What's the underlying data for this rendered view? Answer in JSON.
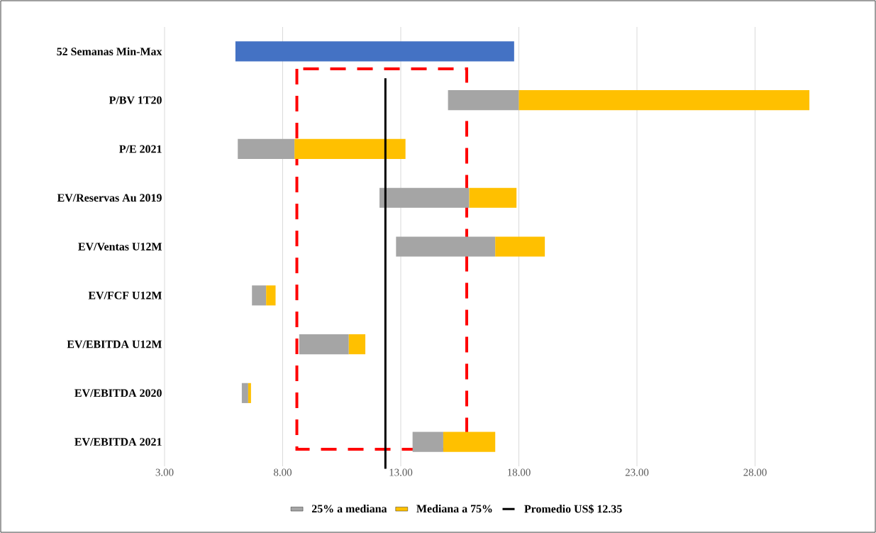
{
  "chart_data": {
    "type": "bar",
    "orientation": "horizontal",
    "categories": [
      "52 Semanas Min-Max",
      "P/BV 1T20",
      "P/E 2021",
      "EV/Reservas Au 2019",
      "EV/Ventas U12M",
      "EV/FCF U12M",
      "EV/EBITDA U12M",
      "EV/EBITDA 2020",
      "EV/EBITDA 2021"
    ],
    "series": [
      {
        "color": "#4472c4",
        "base": [
          6.0,
          null,
          null,
          null,
          null,
          null,
          null,
          null,
          null
        ],
        "values": [
          11.8,
          null,
          null,
          null,
          null,
          null,
          null,
          null,
          null
        ]
      },
      {
        "name": "25% a mediana",
        "color": "#a5a5a5",
        "base": [
          null,
          15.0,
          6.1,
          12.1,
          12.8,
          6.7,
          8.7,
          6.27,
          13.5
        ],
        "values": [
          null,
          3.0,
          2.4,
          3.8,
          4.2,
          0.6,
          2.1,
          0.27,
          1.3
        ]
      },
      {
        "name": "Mediana a 75%",
        "color": "#ffc000",
        "base": [
          null,
          18.0,
          8.5,
          15.9,
          17.0,
          7.3,
          10.8,
          6.54,
          14.8
        ],
        "values": [
          null,
          12.3,
          4.7,
          2.0,
          2.1,
          0.4,
          0.7,
          0.12,
          2.2
        ]
      }
    ],
    "xlim": [
      3,
      33
    ],
    "xticks": [
      {
        "value": 3,
        "label": "3.00"
      },
      {
        "value": 8,
        "label": "8.00"
      },
      {
        "value": 13,
        "label": "13.00"
      },
      {
        "value": 18,
        "label": "18.00"
      },
      {
        "value": 23,
        "label": "23.00"
      },
      {
        "value": 28,
        "label": "28.00"
      }
    ],
    "ref_lines": [
      {
        "axis": "x",
        "value": 12.35,
        "label": "Promedio US$ 12.35",
        "color": "#000000"
      }
    ],
    "grid": "x",
    "legend": "bottom"
  }
}
